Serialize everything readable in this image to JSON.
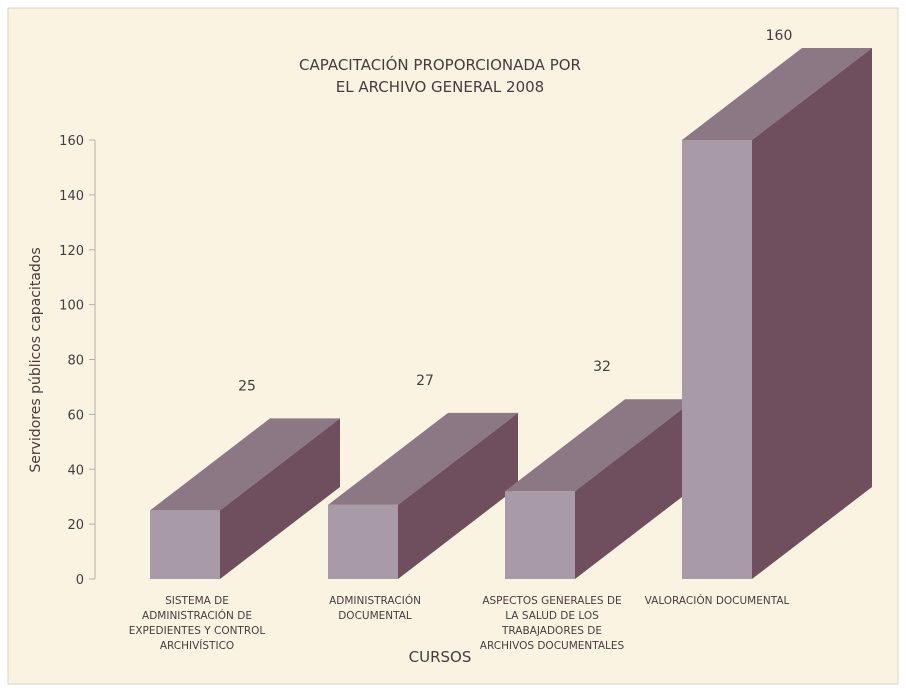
{
  "chart_data": {
    "type": "bar3d",
    "title": "CAPACITACIÓN PROPORCIONADA POR EL ARCHIVO GENERAL 2008",
    "x_label": "CURSOS",
    "y_label": "Servidores públicos capacitados",
    "categories": [
      "SISTEMA DE ADMINISTRACIÓN DE EXPEDIENTES Y CONTROL ARCHIVÍSTICO",
      "ADMINISTRACIÓN DOCUMENTAL",
      "ASPECTOS GENERALES DE LA SALUD DE LOS TRABAJADORES DE ARCHIVOS DOCUMENTALES",
      "VALORACIÓN DOCUMENTAL"
    ],
    "values": [
      25,
      27,
      32,
      160
    ],
    "color": "#a89aa6",
    "ylim": [
      0,
      160
    ],
    "yticks": [
      0,
      20,
      40,
      60,
      80,
      100,
      120,
      140,
      160
    ]
  }
}
